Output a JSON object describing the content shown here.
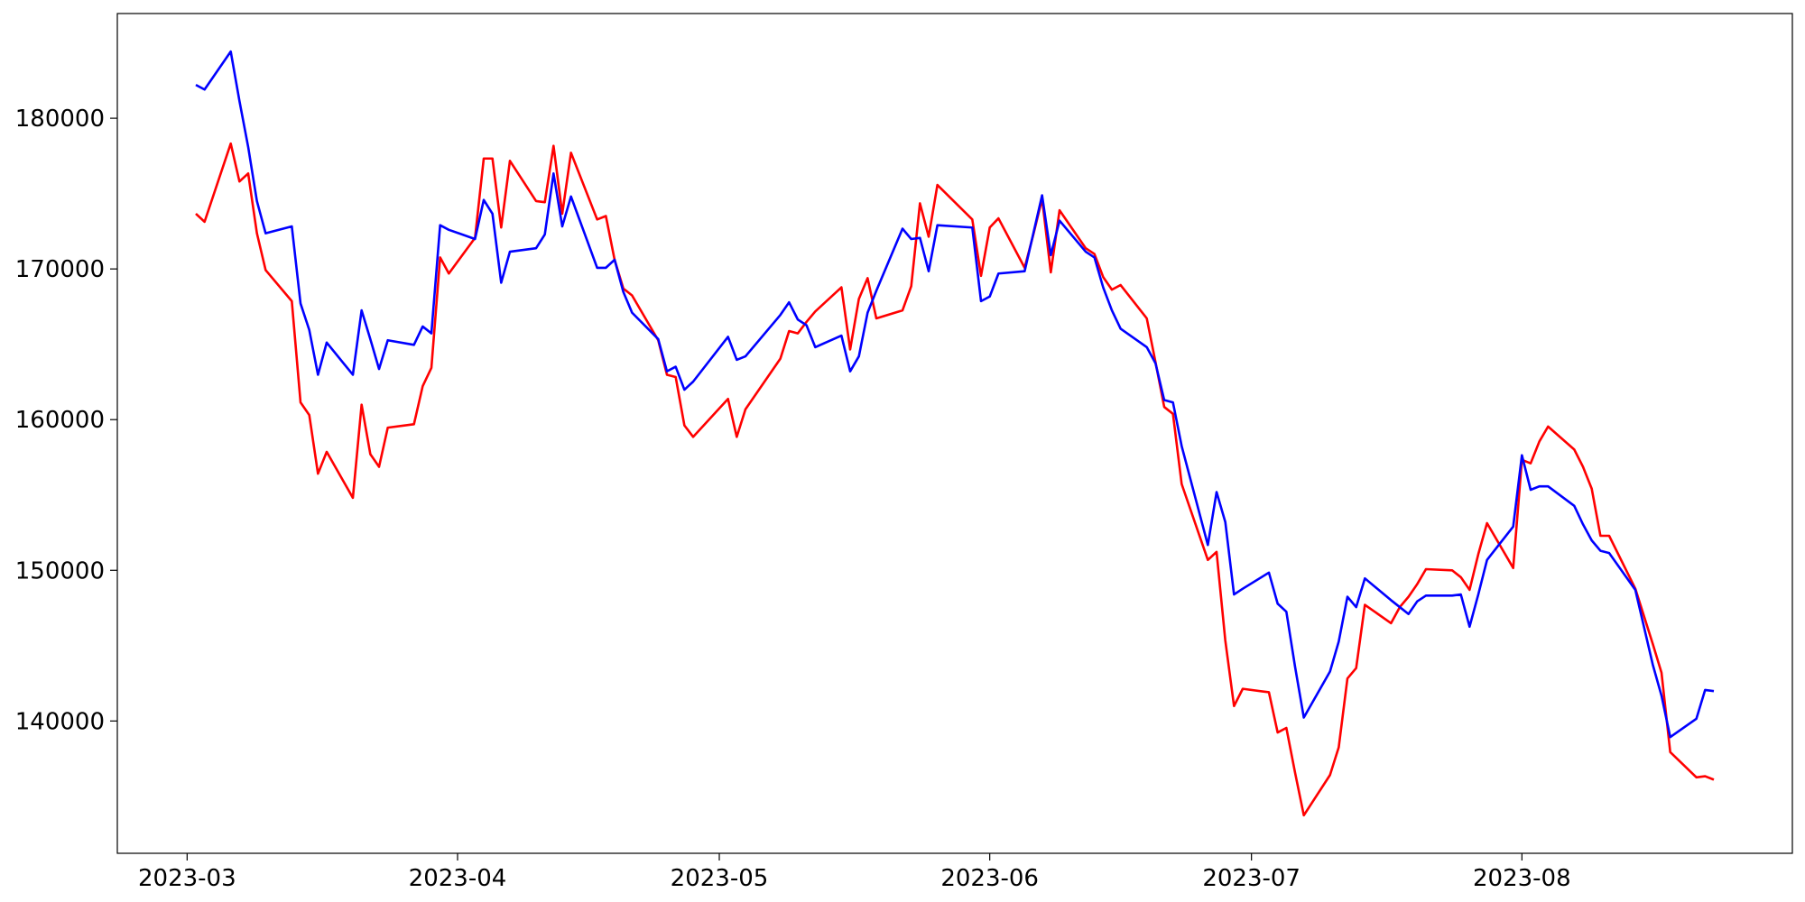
{
  "chart_data": {
    "type": "line",
    "x": [
      "2023-03-02",
      "2023-03-03",
      "2023-03-06",
      "2023-03-07",
      "2023-03-08",
      "2023-03-09",
      "2023-03-10",
      "2023-03-13",
      "2023-03-14",
      "2023-03-15",
      "2023-03-16",
      "2023-03-17",
      "2023-03-20",
      "2023-03-21",
      "2023-03-22",
      "2023-03-23",
      "2023-03-24",
      "2023-03-27",
      "2023-03-28",
      "2023-03-29",
      "2023-03-30",
      "2023-03-31",
      "2023-04-03",
      "2023-04-04",
      "2023-04-05",
      "2023-04-06",
      "2023-04-07",
      "2023-04-10",
      "2023-04-11",
      "2023-04-12",
      "2023-04-13",
      "2023-04-14",
      "2023-04-17",
      "2023-04-18",
      "2023-04-19",
      "2023-04-20",
      "2023-04-21",
      "2023-04-24",
      "2023-04-25",
      "2023-04-26",
      "2023-04-27",
      "2023-04-28",
      "2023-05-02",
      "2023-05-03",
      "2023-05-04",
      "2023-05-08",
      "2023-05-09",
      "2023-05-10",
      "2023-05-11",
      "2023-05-12",
      "2023-05-15",
      "2023-05-16",
      "2023-05-17",
      "2023-05-18",
      "2023-05-19",
      "2023-05-22",
      "2023-05-23",
      "2023-05-24",
      "2023-05-25",
      "2023-05-26",
      "2023-05-30",
      "2023-05-31",
      "2023-06-01",
      "2023-06-02",
      "2023-06-05",
      "2023-06-06",
      "2023-06-07",
      "2023-06-08",
      "2023-06-09",
      "2023-06-12",
      "2023-06-13",
      "2023-06-14",
      "2023-06-15",
      "2023-06-16",
      "2023-06-19",
      "2023-06-20",
      "2023-06-21",
      "2023-06-22",
      "2023-06-23",
      "2023-06-26",
      "2023-06-27",
      "2023-06-28",
      "2023-06-29",
      "2023-06-30",
      "2023-07-03",
      "2023-07-04",
      "2023-07-05",
      "2023-07-06",
      "2023-07-07",
      "2023-07-10",
      "2023-07-11",
      "2023-07-12",
      "2023-07-13",
      "2023-07-14",
      "2023-07-17",
      "2023-07-18",
      "2023-07-19",
      "2023-07-20",
      "2023-07-21",
      "2023-07-24",
      "2023-07-25",
      "2023-07-26",
      "2023-07-27",
      "2023-07-28",
      "2023-07-31",
      "2023-08-01",
      "2023-08-02",
      "2023-08-03",
      "2023-08-04",
      "2023-08-07",
      "2023-08-08",
      "2023-08-09",
      "2023-08-10",
      "2023-08-11",
      "2023-08-14",
      "2023-08-16",
      "2023-08-17",
      "2023-08-18",
      "2023-08-21",
      "2023-08-22",
      "2023-08-23"
    ],
    "series": [
      {
        "color": "red",
        "values": [
          173664,
          173130,
          178321,
          175802,
          176336,
          172366,
          169924,
          167863,
          161145,
          160305,
          156412,
          157863,
          154809,
          160992,
          157710,
          156870,
          159466,
          159695,
          162214,
          163435,
          170763,
          169695,
          172061,
          177328,
          177328,
          172748,
          177176,
          174504,
          174427,
          178168,
          173664,
          177710,
          173282,
          173511,
          170611,
          168702,
          168244,
          165267,
          162977,
          162824,
          159618,
          158855,
          161374,
          158855,
          160687,
          164046,
          165878,
          165725,
          166489,
          167176,
          168779,
          164656,
          168015,
          169389,
          166718,
          167252,
          168855,
          174351,
          172137,
          175573,
          173282,
          169542,
          172748,
          173359,
          170076,
          172290,
          174656,
          169771,
          173893,
          171374,
          170992,
          169466,
          168626,
          168931,
          166718,
          163817,
          160840,
          160382,
          155725,
          150687,
          151221,
          145344,
          140992,
          142137,
          141908,
          139237,
          139542,
          136565,
          133740,
          136412,
          138244,
          142824,
          143511,
          147710,
          146489,
          147557,
          148244,
          149084,
          150076,
          150000,
          149542,
          148702,
          151069,
          153130,
          150153,
          157328,
          157099,
          158550,
          159542,
          158015,
          156870,
          155420,
          152290,
          152290,
          148779,
          145115,
          143206,
          137939,
          136260,
          136336,
          136107
        ]
      },
      {
        "color": "blue",
        "values": [
          182214,
          181908,
          184427,
          181145,
          178092,
          174504,
          172366,
          172824,
          167710,
          165954,
          162977,
          165115,
          162977,
          167252,
          165344,
          163359,
          165267,
          164962,
          166183,
          165725,
          172901,
          172595,
          171985,
          174580,
          173664,
          169084,
          171145,
          171374,
          172290,
          176336,
          172824,
          174809,
          170076,
          170076,
          170611,
          168473,
          167099,
          165344,
          163206,
          163511,
          161985,
          162519,
          165496,
          163969,
          164198,
          166947,
          167786,
          166641,
          166260,
          164809,
          165573,
          163206,
          164198,
          167099,
          168550,
          172672,
          171985,
          172061,
          169847,
          172901,
          172748,
          167863,
          168168,
          169695,
          169847,
          172366,
          174885,
          170916,
          173206,
          171145,
          170763,
          168779,
          167252,
          166031,
          164809,
          163740,
          161298,
          161145,
          158244,
          151679,
          155191,
          153206,
          148397,
          148779,
          149847,
          147786,
          147252,
          143588,
          140229,
          143282,
          145267,
          148244,
          147557,
          149466,
          148015,
          147557,
          147099,
          147939,
          148321,
          148321,
          148397,
          146260,
          148397,
          150687,
          152901,
          157634,
          155344,
          155573,
          155573,
          154275,
          153053,
          151985,
          151298,
          151145,
          148702,
          143740,
          141679,
          138931,
          140153,
          142061,
          141985
        ]
      }
    ],
    "xlim": [
      "2023-02-21",
      "2023-09-01"
    ],
    "xticks": [
      {
        "value": "2023-03-01",
        "label": "2023-03"
      },
      {
        "value": "2023-04-01",
        "label": "2023-04"
      },
      {
        "value": "2023-05-01",
        "label": "2023-05"
      },
      {
        "value": "2023-06-01",
        "label": "2023-06"
      },
      {
        "value": "2023-07-01",
        "label": "2023-07"
      },
      {
        "value": "2023-08-01",
        "label": "2023-08"
      }
    ],
    "ylim": [
      131220,
      186950
    ],
    "yticks": [
      140000,
      150000,
      160000,
      170000,
      180000
    ],
    "grid": false
  }
}
